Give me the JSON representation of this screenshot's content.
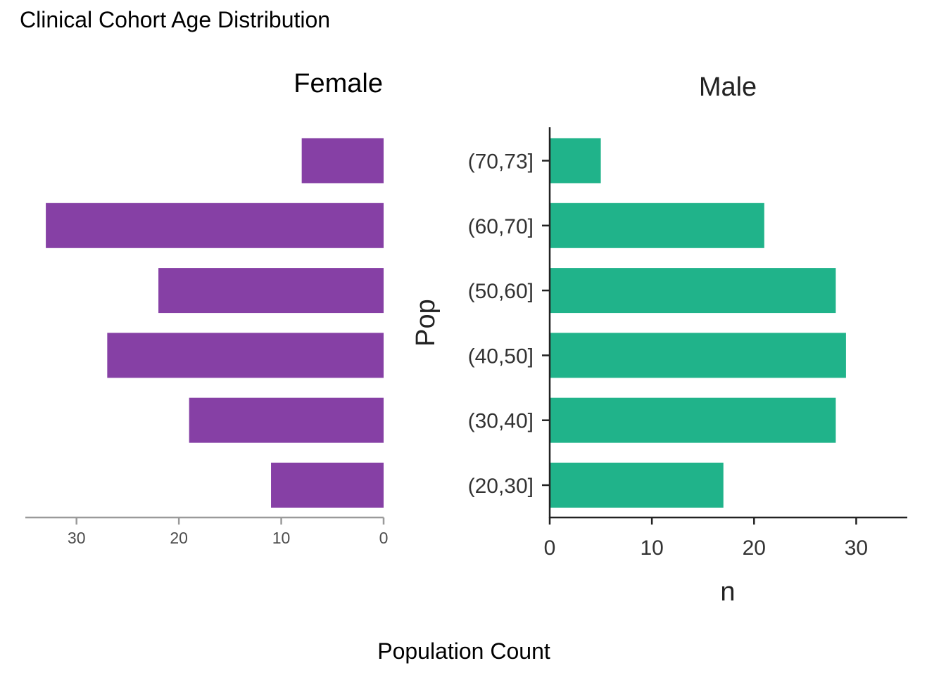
{
  "title": "Clinical Cohort Age Distribution",
  "caption": "Population Count",
  "chart_data": [
    {
      "type": "bar",
      "orientation": "horizontal",
      "title": "Female",
      "categories": [
        "(20,30]",
        "(30,40]",
        "(40,50]",
        "(50,60]",
        "(60,70]",
        "(70,73]"
      ],
      "values": [
        11,
        19,
        27,
        22,
        33,
        8
      ],
      "xlim": [
        35,
        0
      ],
      "x_ticks": [
        30,
        20,
        10,
        0
      ],
      "reversed_x": true,
      "color": "#8640A5",
      "xlabel": "",
      "ylabel": "",
      "grid": false
    },
    {
      "type": "bar",
      "orientation": "horizontal",
      "title": "Male",
      "categories": [
        "(20,30]",
        "(30,40]",
        "(40,50]",
        "(50,60]",
        "(60,70]",
        "(70,73]"
      ],
      "values": [
        17,
        28,
        29,
        28,
        21,
        5
      ],
      "xlim": [
        0,
        35
      ],
      "x_ticks": [
        0,
        10,
        20,
        30
      ],
      "color": "#20B38A",
      "xlabel": "n",
      "ylabel": "Pop",
      "grid": false
    }
  ]
}
